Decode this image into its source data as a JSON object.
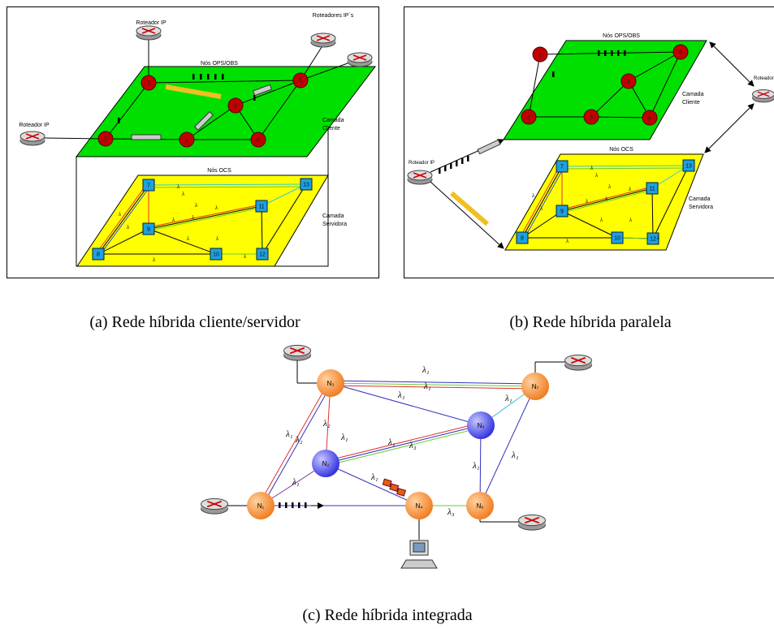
{
  "panel_a": {
    "caption": "(a) Rede híbrida cliente/servidor",
    "router_labels": [
      "Roteador IP",
      "Roteadores IP´s",
      "Roteador IP"
    ],
    "client_layer_title": "Nós OPS/OBS",
    "client_layer_label": [
      "Camada",
      "Cliente"
    ],
    "server_layer_title": "Nós OCS",
    "server_layer_label": [
      "Camada",
      "Servidora"
    ],
    "ops_nodes": [
      "1",
      "5",
      "4",
      "2",
      "3",
      "6"
    ],
    "ocs_nodes": [
      "7",
      "13",
      "11",
      "9",
      "8",
      "10",
      "12"
    ],
    "lambda_labels": [
      "λ",
      "λ",
      "λ",
      "λ",
      "λ",
      "λ",
      "λ",
      "λ",
      "λ",
      "λ",
      "λ",
      "λ"
    ]
  },
  "panel_b": {
    "caption": "(b) Rede híbrida paralela",
    "router_labels": [
      "Roteador IP",
      "Roteador I"
    ],
    "client_layer_title": "Nós OPS/OBS",
    "client_layer_label": [
      "Camada",
      "Cliente"
    ],
    "server_layer_title": "Nós OCS",
    "server_layer_label": [
      "Camada",
      "Servidora"
    ],
    "ops_nodes": [
      "1",
      "5",
      "4",
      "2",
      "3",
      "6"
    ],
    "ocs_nodes": [
      "7",
      "13",
      "11",
      "9",
      "8",
      "10",
      "12"
    ],
    "lambda_labels": [
      "λ",
      "λ",
      "λ",
      "λ",
      "λ",
      "λ",
      "λ",
      "λ",
      "λ",
      "λ",
      "λ",
      "λ"
    ]
  },
  "panel_c": {
    "caption": "(c) Rede híbrida integrada",
    "nodes": [
      "N₃",
      "N₇",
      "N₅",
      "N₂",
      "N₁",
      "N₄",
      "N₆"
    ],
    "lambda_labels": [
      "λ₁",
      "λ₁",
      "λ₁",
      "λ₁",
      "λ₂",
      "λ₁",
      "λ₂",
      "λ₁",
      "λ₁",
      "λ₃",
      "λ₁",
      "λ₁",
      "λ₁",
      "λ₁",
      "λ₃"
    ]
  }
}
